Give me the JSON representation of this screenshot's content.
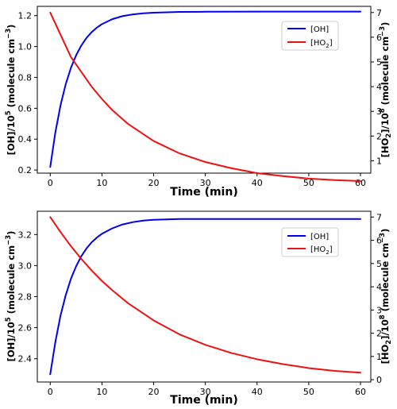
{
  "colors": {
    "oh": "#0000ee",
    "ho2": "#ee1111"
  },
  "chart_data": [
    {
      "type": "line",
      "xlabel": "Time (min)",
      "ylabel_left": "[OH]/10^5 (molecule cm^-3)",
      "ylabel_right": "[HO2]/10^8 (molecule cm^-3)",
      "xlim": [
        -2.5,
        62
      ],
      "ylim_left": [
        0.18,
        1.26
      ],
      "ylim_right": [
        0.5,
        7.25
      ],
      "xticks": [
        "0",
        "10",
        "20",
        "30",
        "40",
        "50",
        "60"
      ],
      "yticks_left": [
        "0.2",
        "0.4",
        "0.6",
        "0.8",
        "1.0",
        "1.2"
      ],
      "yticks_right": [
        "1",
        "2",
        "3",
        "4",
        "5",
        "6",
        "7"
      ],
      "legend": "top-right",
      "grid": false,
      "series": [
        {
          "name": "[OH]",
          "axis": "left",
          "x": [
            0,
            1,
            2,
            3,
            4,
            5,
            6,
            7,
            8,
            9,
            10,
            12,
            14,
            16,
            18,
            20,
            25,
            30,
            40,
            50,
            60
          ],
          "y": [
            0.22,
            0.446,
            0.621,
            0.757,
            0.862,
            0.943,
            1.006,
            1.055,
            1.093,
            1.122,
            1.145,
            1.177,
            1.197,
            1.208,
            1.215,
            1.219,
            1.224,
            1.225,
            1.226,
            1.226,
            1.226
          ]
        },
        {
          "name": "[HO2]",
          "axis": "right",
          "x": [
            0,
            2,
            4,
            6,
            8,
            10,
            12,
            15,
            20,
            25,
            30,
            35,
            40,
            45,
            50,
            55,
            60
          ],
          "y": [
            7.0,
            6.1,
            5.2,
            4.6,
            4.0,
            3.5,
            3.05,
            2.5,
            1.8,
            1.3,
            0.95,
            0.7,
            0.5,
            0.38,
            0.28,
            0.22,
            0.18
          ]
        }
      ]
    },
    {
      "type": "line",
      "xlabel": "Time (min)",
      "ylabel_left": "[OH]/10^5 (molecule cm^-3)",
      "ylabel_right": "[HO2]/10^8 (molecule cm^-3)",
      "xlim": [
        -2.5,
        62
      ],
      "ylim_left": [
        2.25,
        3.35
      ],
      "ylim_right": [
        -0.1,
        7.25
      ],
      "xticks": [
        "0",
        "10",
        "20",
        "30",
        "40",
        "50",
        "60"
      ],
      "yticks_left": [
        "2.4",
        "2.6",
        "2.8",
        "3.0",
        "3.2"
      ],
      "yticks_right": [
        "0",
        "1",
        "2",
        "3",
        "4",
        "5",
        "6",
        "7"
      ],
      "legend": "top-right",
      "grid": false,
      "series": [
        {
          "name": "[OH]",
          "axis": "left",
          "x": [
            0,
            1,
            2,
            3,
            4,
            5,
            6,
            7,
            8,
            9,
            10,
            12,
            14,
            16,
            18,
            20,
            25,
            30,
            40,
            50,
            60
          ],
          "y": [
            2.3,
            2.51,
            2.68,
            2.81,
            2.915,
            2.995,
            3.06,
            3.11,
            3.15,
            3.18,
            3.205,
            3.24,
            3.265,
            3.28,
            3.29,
            3.295,
            3.3,
            3.3,
            3.3,
            3.3,
            3.3
          ]
        },
        {
          "name": "[HO2]",
          "axis": "right",
          "x": [
            0,
            2,
            4,
            6,
            8,
            10,
            12,
            15,
            20,
            25,
            30,
            35,
            40,
            45,
            50,
            55,
            60
          ],
          "y": [
            7.0,
            6.35,
            5.75,
            5.2,
            4.7,
            4.25,
            3.85,
            3.3,
            2.55,
            1.95,
            1.5,
            1.15,
            0.88,
            0.67,
            0.5,
            0.38,
            0.3
          ]
        }
      ]
    }
  ]
}
